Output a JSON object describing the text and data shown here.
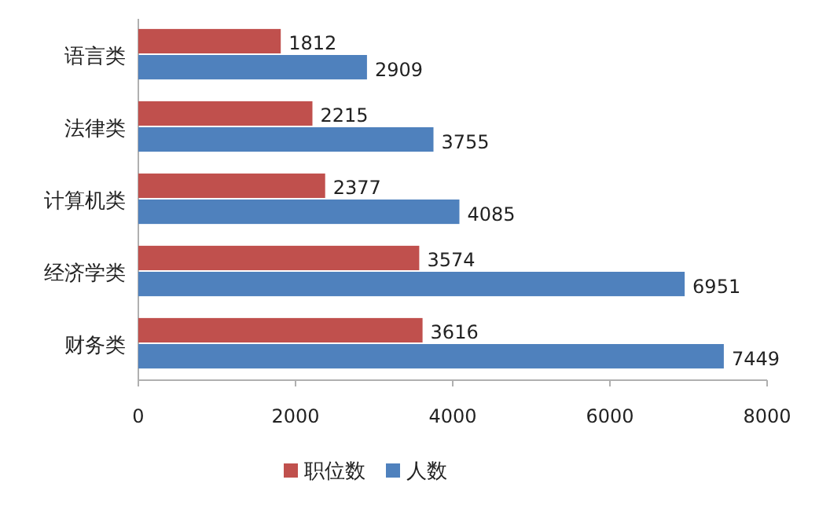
{
  "chart_data": {
    "type": "bar",
    "orientation": "horizontal",
    "categories": [
      "语言类",
      "法律类",
      "计算机类",
      "经济学类",
      "财务类"
    ],
    "series": [
      {
        "name": "职位数",
        "color": "#c0504d",
        "values": [
          1812,
          2215,
          2377,
          3574,
          3616
        ]
      },
      {
        "name": "人数",
        "color": "#4f81bd",
        "values": [
          2909,
          3755,
          4085,
          6951,
          7449
        ]
      }
    ],
    "xlim": [
      0,
      8000
    ],
    "xticks": [
      0,
      2000,
      4000,
      6000,
      8000
    ],
    "data_labels": true,
    "legend": "bottom",
    "grid": false
  }
}
